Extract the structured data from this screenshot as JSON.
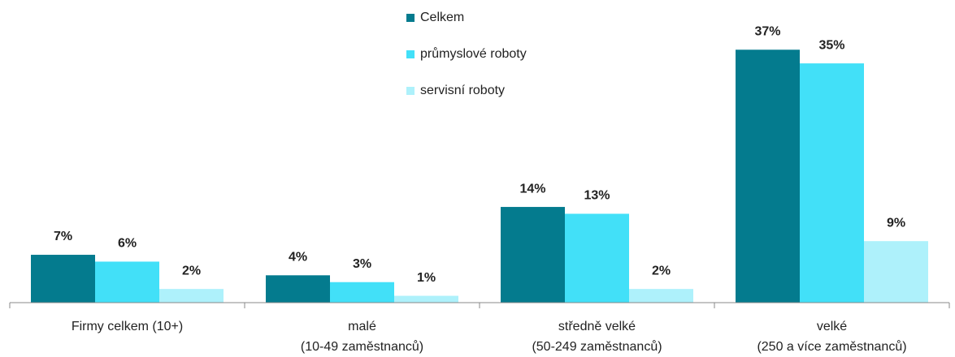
{
  "chart_data": {
    "type": "bar",
    "categories": [
      [
        "Firmy celkem (10+)"
      ],
      [
        "malé",
        "(10-49 zaměstnanců)"
      ],
      [
        "středně velké",
        "(50-249 zaměstnanců)"
      ],
      [
        "velké",
        "(250 a více zaměstnanců)"
      ]
    ],
    "series": [
      {
        "name": "Celkem",
        "color": "#047b8e",
        "values": [
          7,
          4,
          14,
          37
        ],
        "value_labels": [
          "7%",
          "4%",
          "14%",
          "37%"
        ]
      },
      {
        "name": "průmyslové roboty",
        "color": "#42e0f8",
        "values": [
          6,
          3,
          13,
          35
        ],
        "value_labels": [
          "6%",
          "3%",
          "13%",
          "35%"
        ]
      },
      {
        "name": "servisní roboty",
        "color": "#aef1fb",
        "values": [
          2,
          1,
          2,
          9
        ],
        "value_labels": [
          "2%",
          "1%",
          "2%",
          "9%"
        ]
      }
    ],
    "ylim": [
      0,
      40
    ],
    "legend": "top"
  }
}
